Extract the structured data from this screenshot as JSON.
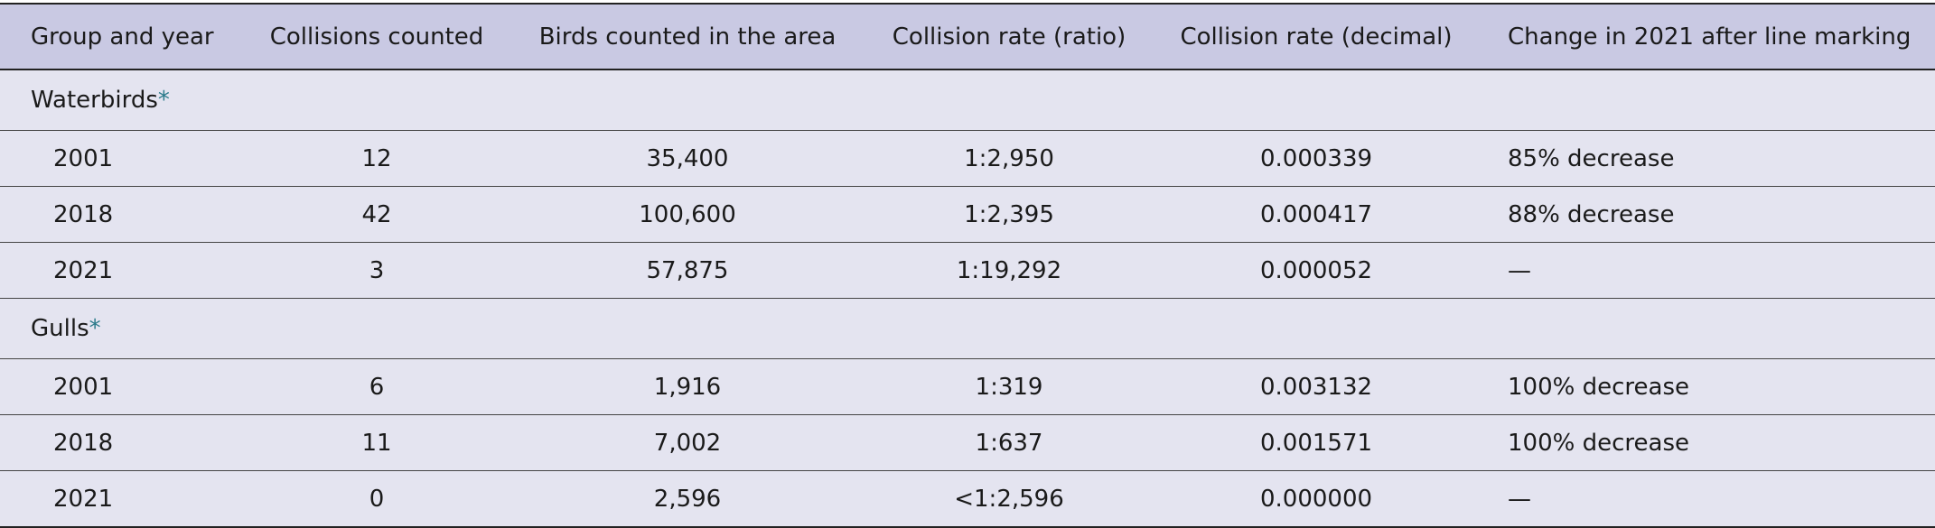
{
  "table": {
    "header": [
      "Group and year",
      "Collisions counted",
      "Birds counted in the area",
      "Collision rate (ratio)",
      "Collision rate (decimal)",
      "Change in 2021 after line marking"
    ],
    "groups": [
      {
        "name": "Waterbirds",
        "marker": "*",
        "rows": [
          [
            "2001",
            "12",
            "35,400",
            "1:2,950",
            "0.000339",
            "85% decrease"
          ],
          [
            "2018",
            "42",
            "100,600",
            "1:2,395",
            "0.000417",
            "88% decrease"
          ],
          [
            "2021",
            "3",
            "57,875",
            "1:19,292",
            "0.000052",
            "—"
          ]
        ]
      },
      {
        "name": "Gulls",
        "marker": "*",
        "rows": [
          [
            "2001",
            "6",
            "1,916",
            "1:319",
            "0.003132",
            "100% decrease"
          ],
          [
            "2018",
            "11",
            "7,002",
            "1:637",
            "0.001571",
            "100% decrease"
          ],
          [
            "2021",
            "0",
            "2,596",
            "<1:2,596",
            "0.000000",
            "—"
          ]
        ]
      }
    ]
  }
}
